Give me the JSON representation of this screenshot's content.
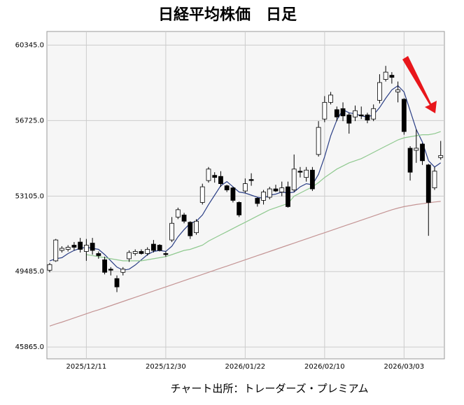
{
  "chart_data": {
    "type": "candlestick",
    "title": "日経平均株価　日足",
    "source": "チャート出所：トレーダーズ・プレミアム",
    "categories": [
      null,
      null,
      null,
      null,
      null,
      null,
      "2025/12/11",
      null,
      null,
      null,
      null,
      null,
      null,
      null,
      null,
      null,
      null,
      null,
      null,
      "2025/12/30",
      null,
      null,
      null,
      null,
      null,
      null,
      null,
      null,
      null,
      null,
      null,
      null,
      "2026/01/22",
      null,
      null,
      null,
      null,
      null,
      null,
      null,
      null,
      null,
      null,
      null,
      null,
      "2026/02/10",
      null,
      null,
      null,
      null,
      null,
      null,
      null,
      null,
      null,
      null,
      null,
      null,
      "2026/03/03",
      null,
      null,
      null,
      null,
      null,
      null
    ],
    "open": [
      49550,
      50000,
      50500,
      50550,
      50750,
      50900,
      50450,
      50850,
      50350,
      50050,
      49600,
      49150,
      49450,
      50100,
      50350,
      50450,
      50350,
      50800,
      50750,
      50350,
      51000,
      52100,
      52200,
      51850,
      51350,
      52800,
      53850,
      54100,
      54050,
      53600,
      53500,
      52800,
      53350,
      53900,
      53000,
      52900,
      53050,
      53450,
      53300,
      53550,
      53400,
      54300,
      54000,
      54350,
      55100,
      56800,
      57600,
      57250,
      57300,
      57000,
      56900,
      57000,
      57000,
      56800,
      57700,
      58700,
      58900,
      58100,
      57750,
      55400,
      55300,
      55600,
      54600,
      53500,
      54950
    ],
    "high": [
      49900,
      51050,
      50700,
      50750,
      50900,
      51100,
      51050,
      51100,
      50450,
      50200,
      49700,
      49300,
      49700,
      50500,
      50550,
      50550,
      50650,
      51000,
      50800,
      50450,
      52100,
      52550,
      52300,
      51900,
      52000,
      53700,
      54500,
      54250,
      54300,
      53650,
      53550,
      52850,
      53950,
      54200,
      53050,
      53400,
      53550,
      53650,
      53800,
      53800,
      55100,
      54500,
      54500,
      54500,
      56700,
      57900,
      58100,
      57400,
      57600,
      57100,
      57450,
      57400,
      57100,
      57500,
      58950,
      59350,
      59050,
      58600,
      57800,
      55500,
      56300,
      55650,
      54650,
      54500,
      55750
    ],
    "low": [
      49450,
      49950,
      50400,
      50450,
      50500,
      50400,
      50000,
      50300,
      50100,
      49350,
      49300,
      48500,
      49300,
      49950,
      50250,
      50300,
      50250,
      50400,
      50450,
      50200,
      50900,
      52000,
      51800,
      51050,
      51250,
      52700,
      53750,
      53750,
      53550,
      53300,
      52800,
      52100,
      53250,
      53600,
      52600,
      52700,
      52950,
      53300,
      53100,
      52550,
      53300,
      54000,
      53800,
      53350,
      55000,
      56650,
      57500,
      56700,
      56700,
      56100,
      56700,
      56800,
      56600,
      56700,
      57550,
      58600,
      58500,
      57600,
      56050,
      53850,
      54700,
      54600,
      51200,
      53400,
      54850
    ],
    "close": [
      49820,
      51000,
      50600,
      50650,
      50650,
      50550,
      50750,
      50500,
      50250,
      49450,
      49550,
      48750,
      49600,
      50400,
      50450,
      50350,
      50550,
      50500,
      50500,
      50300,
      51800,
      52450,
      51900,
      51200,
      51900,
      53550,
      54400,
      54000,
      53700,
      53400,
      52900,
      52200,
      53700,
      53850,
      52750,
      53300,
      53450,
      53350,
      53500,
      52600,
      54400,
      54250,
      54350,
      53450,
      56400,
      57600,
      57950,
      56900,
      56950,
      56600,
      57200,
      56950,
      56750,
      57300,
      58550,
      59050,
      58800,
      58200,
      56200,
      54250,
      55400,
      54800,
      52800,
      54300,
      55050
    ],
    "up_color": "#ffffff",
    "down_color": "#000000",
    "lines": [
      {
        "color": "#2b3f86",
        "values": [
          50000,
          50100,
          50150,
          50350,
          50500,
          50600,
          50650,
          50600,
          50550,
          50300,
          50000,
          49700,
          49550,
          49600,
          49800,
          50050,
          50300,
          50450,
          50500,
          50450,
          50700,
          51150,
          51500,
          51800,
          51900,
          52200,
          52700,
          53150,
          53600,
          53800,
          53550,
          53300,
          53250,
          53150,
          53050,
          53000,
          53150,
          53200,
          53300,
          53250,
          53300,
          53550,
          53700,
          53650,
          54150,
          55000,
          56000,
          56750,
          57250,
          57100,
          57050,
          56950,
          56900,
          57000,
          57350,
          57800,
          58200,
          58400,
          58100,
          57200,
          56300,
          55700,
          54800,
          54500,
          54700
        ]
      },
      {
        "color": "#8fc98f",
        "values": [
          null,
          null,
          null,
          null,
          null,
          null,
          50300,
          50250,
          50200,
          50150,
          50100,
          50050,
          50000,
          50000,
          50000,
          50000,
          50050,
          50100,
          50150,
          50200,
          50300,
          50400,
          50500,
          50550,
          50650,
          50750,
          50950,
          51100,
          51250,
          51400,
          51550,
          51700,
          51850,
          52000,
          52150,
          52300,
          52450,
          52550,
          52650,
          52750,
          53100,
          53250,
          53400,
          53550,
          53750,
          54000,
          54200,
          54400,
          54550,
          54700,
          54800,
          54900,
          55050,
          55200,
          55350,
          55500,
          55650,
          55800,
          55900,
          55950,
          56000,
          56050,
          56050,
          56100,
          56200
        ]
      },
      {
        "color": "#c49494",
        "values": [
          46870,
          46970,
          47060,
          47160,
          47260,
          47360,
          47460,
          47560,
          47650,
          47750,
          47850,
          47950,
          48050,
          48150,
          48250,
          48350,
          48450,
          48550,
          48650,
          48750,
          48850,
          48950,
          49050,
          49150,
          49250,
          49350,
          49450,
          49550,
          49650,
          49750,
          49850,
          49950,
          50050,
          50150,
          50250,
          50350,
          50450,
          50550,
          50650,
          50750,
          50850,
          50950,
          51050,
          51150,
          51250,
          51350,
          51450,
          51550,
          51650,
          51750,
          51850,
          51950,
          52050,
          52150,
          52250,
          52350,
          52450,
          52530,
          52600,
          52650,
          52700,
          52740,
          52780,
          52820,
          52850
        ]
      }
    ],
    "ylim": [
      45300,
      61000
    ],
    "yticks": [
      {
        "value": 45865,
        "label": "45865.0"
      },
      {
        "value": 49485,
        "label": "49485.0"
      },
      {
        "value": 53105,
        "label": "53105.0"
      },
      {
        "value": 56725,
        "label": "56725.0"
      },
      {
        "value": 60345,
        "label": "60345.0"
      }
    ],
    "grid": true
  }
}
